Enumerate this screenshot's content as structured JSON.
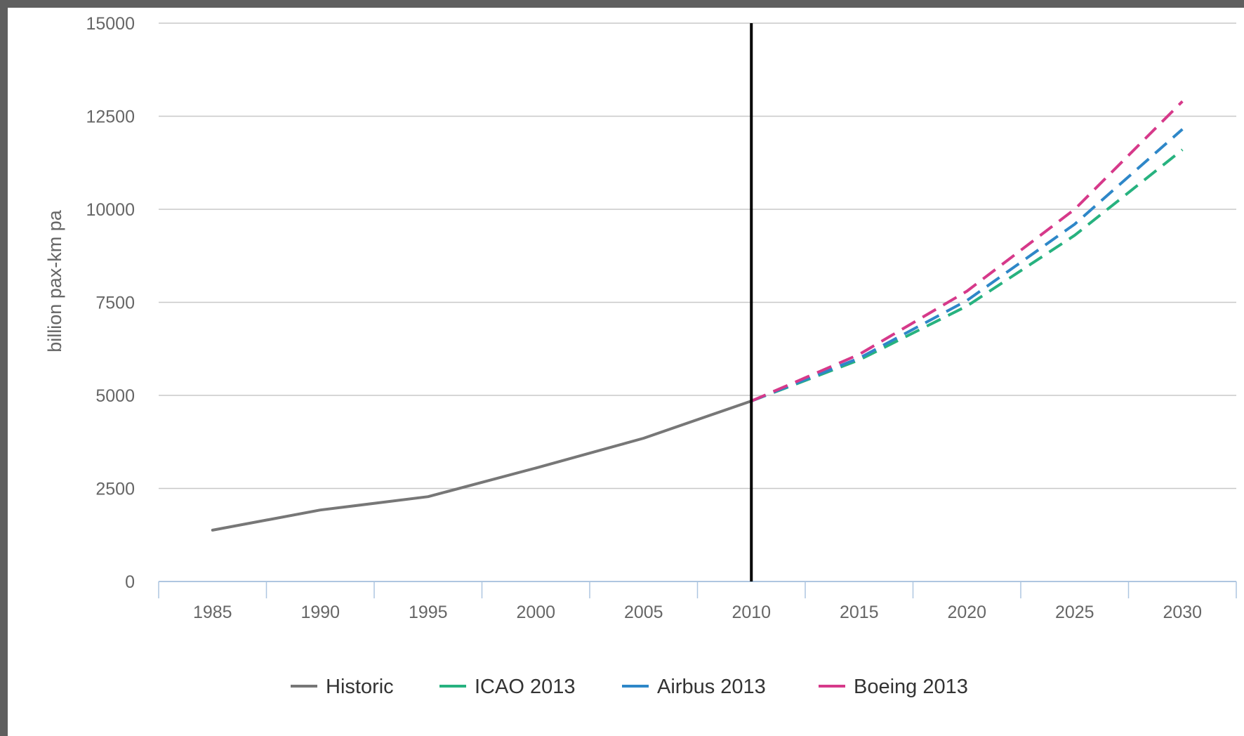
{
  "colors": {
    "background": "#ffffff",
    "frame": "#5f5f5f",
    "grid": "#c8c8c8",
    "axis": "#aec6e0",
    "divider": "#000000"
  },
  "chart_data": {
    "type": "line",
    "title": "",
    "xlabel": "",
    "ylabel": "billion pax-km pa",
    "ylim": [
      0,
      15000
    ],
    "yticks": [
      0,
      2500,
      5000,
      7500,
      10000,
      12500,
      15000
    ],
    "categories": [
      "1985",
      "1990",
      "1995",
      "2000",
      "2005",
      "2010",
      "2015",
      "2020",
      "2025",
      "2030"
    ],
    "grid": true,
    "legend_position": "bottom",
    "divider_at": "2010",
    "series": [
      {
        "name": "Historic",
        "color": "#777777",
        "dashed": false,
        "values": [
          1380,
          1920,
          2280,
          3050,
          3850,
          4850,
          null,
          null,
          null,
          null
        ]
      },
      {
        "name": "ICAO 2013",
        "color": "#27b27f",
        "dashed": true,
        "values": [
          null,
          null,
          null,
          null,
          null,
          4850,
          5950,
          7400,
          9300,
          11600
        ]
      },
      {
        "name": "Airbus 2013",
        "color": "#2e87c8",
        "dashed": true,
        "values": [
          null,
          null,
          null,
          null,
          null,
          4850,
          6000,
          7550,
          9600,
          12150
        ]
      },
      {
        "name": "Boeing 2013",
        "color": "#d6398a",
        "dashed": true,
        "values": [
          null,
          null,
          null,
          null,
          null,
          4850,
          6100,
          7800,
          10000,
          12900
        ]
      }
    ]
  }
}
